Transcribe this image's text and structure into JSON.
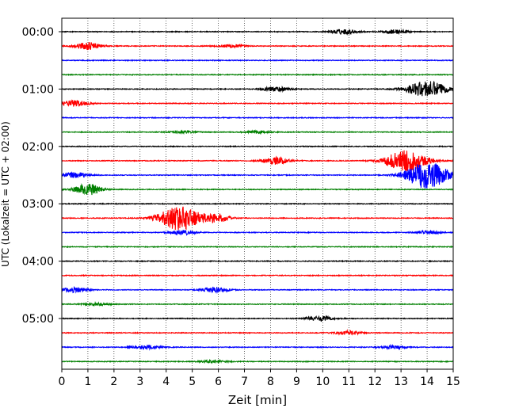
{
  "chart_data": {
    "type": "line",
    "title": "",
    "xlabel": "Zeit  [min]",
    "ylabel": "UTC (Lokalzeit = UTC + 02:00)",
    "xlim": [
      0,
      15
    ],
    "x_ticks": [
      "0",
      "1",
      "2",
      "3",
      "4",
      "5",
      "6",
      "7",
      "8",
      "9",
      "10",
      "11",
      "12",
      "13",
      "14",
      "15"
    ],
    "y_ticks": [
      "00:00",
      "01:00",
      "02:00",
      "03:00",
      "04:00",
      "05:00"
    ],
    "grid": "vertical-dotted",
    "colors": [
      "#000000",
      "#ff0000",
      "#0000ff",
      "#008000"
    ],
    "traces": [
      {
        "start": "00:00",
        "color": "#000000",
        "bursts": [
          {
            "t": 10.8,
            "amp": 0.3
          },
          {
            "t": 12.8,
            "amp": 0.25
          }
        ]
      },
      {
        "start": "00:15",
        "color": "#ff0000",
        "bursts": [
          {
            "t": 1.0,
            "amp": 0.45
          },
          {
            "t": 6.5,
            "amp": 0.2
          }
        ]
      },
      {
        "start": "00:30",
        "color": "#0000ff",
        "bursts": []
      },
      {
        "start": "00:45",
        "color": "#008000",
        "bursts": []
      },
      {
        "start": "01:00",
        "color": "#000000",
        "bursts": [
          {
            "t": 8.2,
            "amp": 0.3
          },
          {
            "t": 14.0,
            "amp": 1.0
          }
        ]
      },
      {
        "start": "01:15",
        "color": "#ff0000",
        "bursts": [
          {
            "t": 0.5,
            "amp": 0.4
          }
        ]
      },
      {
        "start": "01:30",
        "color": "#0000ff",
        "bursts": []
      },
      {
        "start": "01:45",
        "color": "#008000",
        "bursts": [
          {
            "t": 4.7,
            "amp": 0.15
          },
          {
            "t": 7.5,
            "amp": 0.15
          }
        ]
      },
      {
        "start": "02:00",
        "color": "#000000",
        "bursts": []
      },
      {
        "start": "02:15",
        "color": "#ff0000",
        "bursts": [
          {
            "t": 8.2,
            "amp": 0.45
          },
          {
            "t": 13.2,
            "amp": 1.3
          }
        ]
      },
      {
        "start": "02:30",
        "color": "#0000ff",
        "bursts": [
          {
            "t": 0.5,
            "amp": 0.35
          },
          {
            "t": 14.0,
            "amp": 1.7
          }
        ]
      },
      {
        "start": "02:45",
        "color": "#008000",
        "bursts": [
          {
            "t": 1.0,
            "amp": 0.75
          }
        ]
      },
      {
        "start": "03:00",
        "color": "#000000",
        "bursts": []
      },
      {
        "start": "03:15",
        "color": "#ff0000",
        "bursts": [
          {
            "t": 4.5,
            "amp": 1.5
          },
          {
            "t": 5.9,
            "amp": 0.55
          }
        ]
      },
      {
        "start": "03:30",
        "color": "#0000ff",
        "bursts": [
          {
            "t": 4.6,
            "amp": 0.3
          },
          {
            "t": 14.0,
            "amp": 0.2
          }
        ]
      },
      {
        "start": "03:45",
        "color": "#008000",
        "bursts": []
      },
      {
        "start": "04:00",
        "color": "#000000",
        "bursts": []
      },
      {
        "start": "04:15",
        "color": "#ff0000",
        "bursts": []
      },
      {
        "start": "04:30",
        "color": "#0000ff",
        "bursts": [
          {
            "t": 0.5,
            "amp": 0.3
          },
          {
            "t": 5.9,
            "amp": 0.35
          }
        ]
      },
      {
        "start": "04:45",
        "color": "#008000",
        "bursts": [
          {
            "t": 1.3,
            "amp": 0.15
          }
        ]
      },
      {
        "start": "05:00",
        "color": "#000000",
        "bursts": [
          {
            "t": 9.9,
            "amp": 0.3
          }
        ]
      },
      {
        "start": "05:15",
        "color": "#ff0000",
        "bursts": [
          {
            "t": 11.0,
            "amp": 0.25
          }
        ]
      },
      {
        "start": "05:30",
        "color": "#0000ff",
        "bursts": [
          {
            "t": 3.3,
            "amp": 0.25
          },
          {
            "t": 12.7,
            "amp": 0.2
          }
        ]
      },
      {
        "start": "05:45",
        "color": "#008000",
        "bursts": [
          {
            "t": 5.8,
            "amp": 0.15
          }
        ]
      }
    ]
  }
}
